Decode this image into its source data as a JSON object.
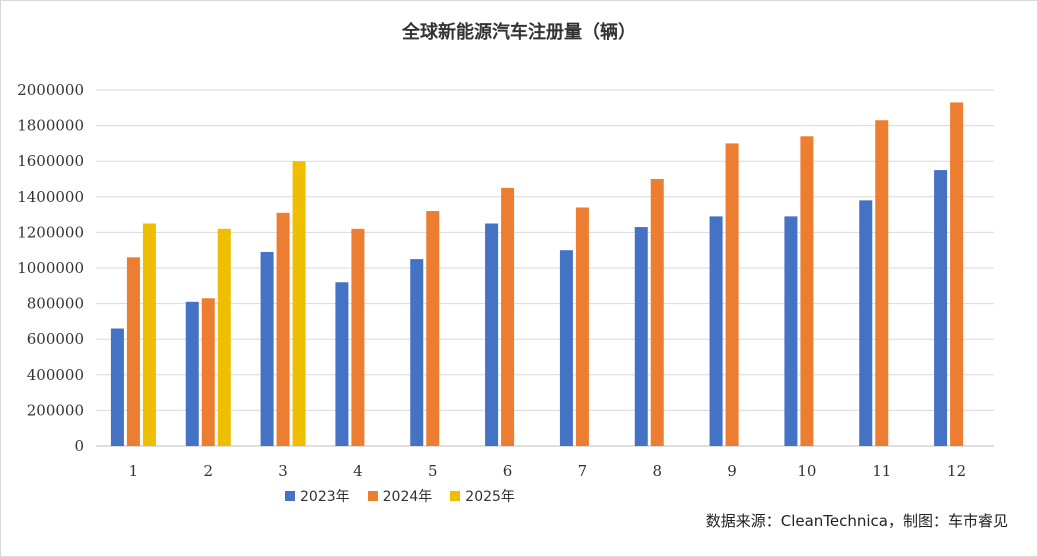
{
  "title": "全球新能源汽车注册量（辆）",
  "source_note": "数据来源：CleanTechnica，制图：车市睿见",
  "chart_data": {
    "type": "bar",
    "title": "全球新能源汽车注册量（辆）",
    "xlabel": "",
    "ylabel": "",
    "categories": [
      "1",
      "2",
      "3",
      "4",
      "5",
      "6",
      "7",
      "8",
      "9",
      "10",
      "11",
      "12"
    ],
    "ylim": [
      0,
      2000000
    ],
    "yticks": [
      0,
      200000,
      400000,
      600000,
      800000,
      1000000,
      1200000,
      1400000,
      1600000,
      1800000,
      2000000
    ],
    "grid": true,
    "legend_position": "bottom",
    "series": [
      {
        "name": "2023年",
        "color": "#4472C4",
        "values": [
          660000,
          810000,
          1090000,
          920000,
          1050000,
          1250000,
          1100000,
          1230000,
          1290000,
          1290000,
          1380000,
          1550000
        ]
      },
      {
        "name": "2024年",
        "color": "#ED7D31",
        "values": [
          1060000,
          830000,
          1310000,
          1220000,
          1320000,
          1450000,
          1340000,
          1500000,
          1700000,
          1740000,
          1830000,
          1930000
        ]
      },
      {
        "name": "2025年",
        "color": "#F0BE00",
        "values": [
          1250000,
          1220000,
          1600000,
          null,
          null,
          null,
          null,
          null,
          null,
          null,
          null,
          null
        ]
      }
    ]
  }
}
